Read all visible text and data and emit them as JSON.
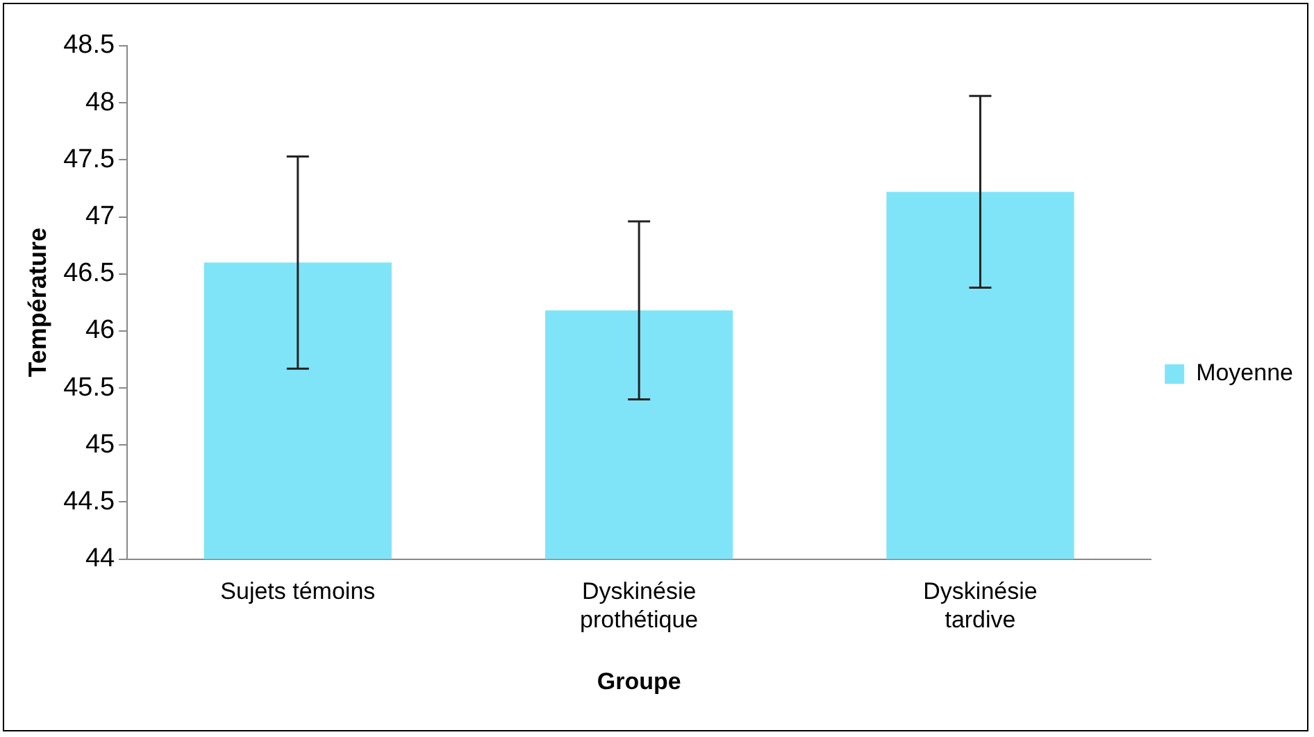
{
  "chart_data": {
    "type": "bar",
    "xlabel": "Groupe",
    "ylabel": "Température",
    "categories": [
      "Sujets témoins",
      "Dyskinésie prothétique",
      "Dyskinésie tardive"
    ],
    "series": [
      {
        "name": "Moyenne",
        "color": "#80e4f8",
        "values": [
          46.6,
          46.18,
          47.22
        ],
        "errors": [
          0.93,
          0.78,
          0.84
        ]
      }
    ],
    "ylim": [
      44,
      48.5
    ],
    "yticks": [
      44,
      44.5,
      45,
      45.5,
      46,
      46.5,
      47,
      47.5,
      48,
      48.5
    ],
    "grid": false,
    "legend": "right"
  }
}
